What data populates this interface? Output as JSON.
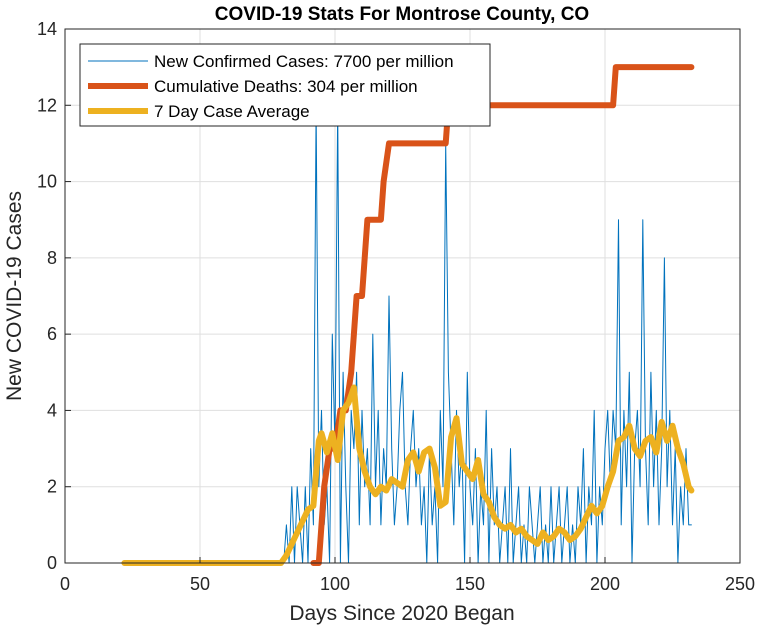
{
  "chart_data": {
    "type": "line",
    "title": "COVID-19 Stats For Montrose County, CO",
    "xlabel": "Days Since 2020 Began",
    "ylabel": "New COVID-19 Cases",
    "xlim": [
      0,
      250
    ],
    "ylim": [
      0,
      14
    ],
    "xticks": [
      0,
      50,
      100,
      150,
      200,
      250
    ],
    "yticks": [
      0,
      2,
      4,
      6,
      8,
      10,
      12,
      14
    ],
    "grid": true,
    "legend_position": "top-left",
    "series": [
      {
        "name": "New Confirmed Cases: 7700 per million",
        "color": "#0072bd",
        "x": [
          81,
          82,
          83,
          84,
          85,
          86,
          87,
          88,
          89,
          90,
          91,
          92,
          93,
          94,
          95,
          96,
          97,
          98,
          99,
          100,
          101,
          102,
          103,
          104,
          105,
          106,
          107,
          108,
          109,
          110,
          111,
          112,
          113,
          114,
          115,
          116,
          117,
          118,
          119,
          120,
          121,
          122,
          123,
          124,
          125,
          126,
          127,
          128,
          129,
          130,
          131,
          132,
          133,
          134,
          135,
          136,
          137,
          138,
          139,
          140,
          141,
          142,
          143,
          144,
          145,
          146,
          147,
          148,
          149,
          150,
          151,
          152,
          153,
          154,
          155,
          156,
          157,
          158,
          159,
          160,
          161,
          162,
          163,
          164,
          165,
          166,
          167,
          168,
          169,
          170,
          171,
          172,
          173,
          174,
          175,
          176,
          177,
          178,
          179,
          180,
          181,
          182,
          183,
          184,
          185,
          186,
          187,
          188,
          189,
          190,
          191,
          192,
          193,
          194,
          195,
          196,
          197,
          198,
          199,
          200,
          201,
          202,
          203,
          204,
          205,
          206,
          207,
          208,
          209,
          210,
          211,
          212,
          213,
          214,
          215,
          216,
          217,
          218,
          219,
          220,
          221,
          222,
          223,
          224,
          225,
          226,
          227,
          228,
          229,
          230,
          231,
          232
        ],
        "y": [
          0,
          1,
          0,
          2,
          0,
          2,
          1,
          0,
          2,
          0,
          3,
          1,
          12,
          2,
          4,
          1,
          2,
          0,
          6,
          3,
          12,
          0,
          5,
          2,
          0,
          4,
          3,
          5,
          1,
          4,
          2,
          3,
          1,
          6,
          2,
          4,
          1,
          3,
          2,
          7,
          3,
          1,
          2,
          4,
          5,
          2,
          1,
          3,
          4,
          2,
          3,
          1,
          2,
          0,
          3,
          1,
          2,
          0,
          4,
          2,
          11,
          5,
          3,
          1,
          4,
          2,
          3,
          0,
          5,
          2,
          1,
          3,
          0,
          2,
          1,
          4,
          0,
          3,
          1,
          2,
          0,
          1,
          2,
          0,
          3,
          0,
          1,
          2,
          0,
          1,
          0,
          2,
          1,
          0,
          1,
          2,
          0,
          1,
          0,
          2,
          0,
          1,
          2,
          0,
          1,
          2,
          0,
          1,
          0,
          2,
          1,
          3,
          0,
          2,
          1,
          4,
          0,
          2,
          1,
          3,
          4,
          2,
          4,
          3,
          9,
          1,
          4,
          2,
          5,
          0,
          3,
          4,
          2,
          9,
          3,
          1,
          5,
          2,
          4,
          1,
          3,
          8,
          2,
          4,
          1,
          3,
          0,
          2,
          1,
          3,
          1,
          1
        ]
      },
      {
        "name": "Cumulative Deaths: 304 per million",
        "color": "#d95319",
        "x": [
          92,
          94,
          96,
          98,
          100,
          102,
          104,
          106,
          108,
          110,
          111,
          112,
          115,
          117,
          118,
          120,
          125,
          130,
          135,
          140,
          141,
          142,
          145,
          150,
          160,
          170,
          180,
          190,
          200,
          202,
          203,
          204,
          210,
          220,
          230,
          232
        ],
        "y": [
          0,
          0,
          2,
          3,
          3,
          4,
          4,
          5,
          7,
          7,
          8,
          9,
          9,
          9,
          10,
          11,
          11,
          11,
          11,
          11,
          11,
          12,
          12,
          12,
          12,
          12,
          12,
          12,
          12,
          12,
          12,
          13,
          13,
          13,
          13,
          13
        ]
      },
      {
        "name": "7 Day Case Average",
        "color": "#edb120",
        "x": [
          22,
          40,
          60,
          80,
          82,
          84,
          86,
          88,
          90,
          92,
          94,
          95,
          97,
          99,
          101,
          103,
          105,
          107,
          109,
          111,
          113,
          115,
          117,
          119,
          121,
          123,
          125,
          127,
          129,
          131,
          133,
          135,
          137,
          139,
          141,
          143,
          145,
          147,
          149,
          151,
          153,
          155,
          157,
          159,
          161,
          163,
          165,
          167,
          169,
          171,
          173,
          175,
          177,
          179,
          181,
          183,
          185,
          187,
          189,
          191,
          193,
          195,
          197,
          199,
          201,
          203,
          205,
          207,
          209,
          211,
          213,
          215,
          217,
          219,
          221,
          223,
          225,
          227,
          229,
          231,
          232
        ],
        "y": [
          0,
          0,
          0,
          0,
          0.2,
          0.5,
          0.8,
          1.1,
          1.4,
          1.5,
          3.2,
          3.4,
          2.9,
          3.4,
          2.7,
          4.0,
          4.2,
          4.6,
          3.0,
          2.4,
          2.0,
          1.8,
          2.0,
          1.9,
          2.2,
          2.1,
          2.0,
          2.7,
          2.9,
          2.4,
          2.9,
          3.0,
          2.5,
          1.5,
          1.6,
          3.3,
          3.8,
          2.6,
          2.4,
          2.2,
          2.7,
          1.8,
          1.6,
          1.2,
          1.0,
          0.9,
          1.0,
          0.8,
          0.9,
          0.7,
          0.6,
          0.5,
          0.8,
          0.6,
          0.7,
          0.9,
          0.8,
          0.6,
          0.7,
          0.9,
          1.2,
          1.5,
          1.3,
          1.5,
          2.0,
          2.4,
          3.2,
          3.3,
          3.6,
          3.0,
          2.8,
          3.2,
          3.3,
          2.9,
          3.7,
          3.2,
          3.6,
          3.0,
          2.6,
          2.0,
          1.9
        ]
      }
    ]
  }
}
